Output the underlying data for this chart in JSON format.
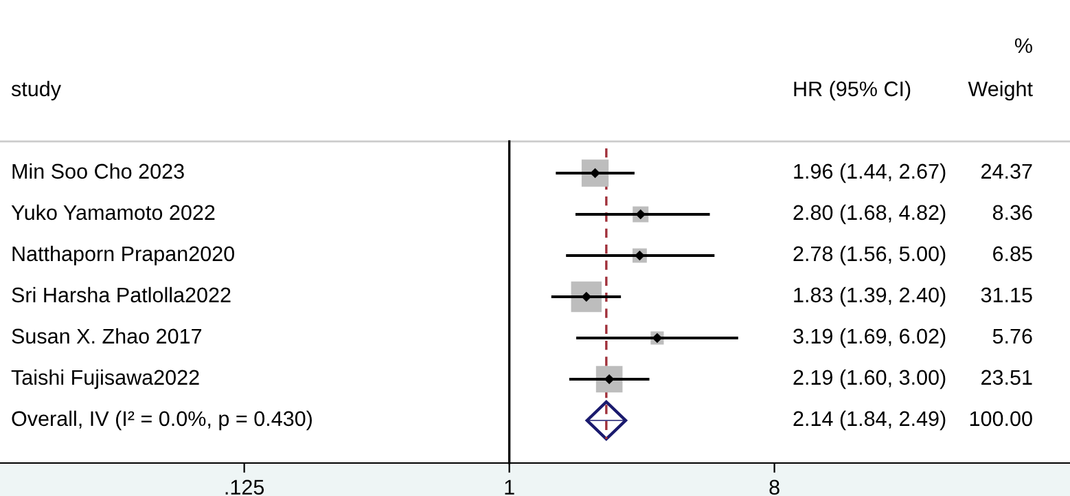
{
  "chart_data": {
    "type": "scatter",
    "orientation": "horizontal",
    "log": "x",
    "grid": false,
    "legend": false,
    "ylabel": "study",
    "categories": [
      "Min Soo Cho 2023",
      "Yuko Yamamoto 2022",
      "Natthaporn Prapan2020",
      "Sri Harsha Patlolla2022",
      "Susan X. Zhao 2017",
      "Taishi Fujisawa2022",
      "Overall, IV (I² = 0.0%, p = 0.430)"
    ],
    "series": [
      {
        "type": "bubble",
        "marker": "square",
        "color": "#bdbdbd",
        "values": [
          1.96,
          2.8,
          2.78,
          1.83,
          3.19,
          2.19,
          null
        ],
        "sizes": [
          0.7823,
          0.2684,
          0.2199,
          1,
          0.1849,
          0.7548,
          null
        ]
      },
      {
        "type": "scatter",
        "marker": "diamond",
        "color": "#000000",
        "values": [
          1.96,
          2.8,
          2.78,
          1.83,
          3.19,
          2.19,
          null
        ],
        "errors": [
          [
            1.44,
            2.67
          ],
          [
            1.68,
            4.82
          ],
          [
            1.56,
            5.0
          ],
          [
            1.39,
            2.4
          ],
          [
            1.69,
            6.02
          ],
          [
            1.6,
            3.0
          ],
          null
        ]
      },
      {
        "type": "scatter",
        "marker": "diamond",
        "color": "#1a1a6e",
        "values": [
          null,
          null,
          null,
          null,
          null,
          null,
          2.14
        ],
        "errors": [
          null,
          null,
          null,
          null,
          null,
          null,
          [
            1.84,
            2.49
          ]
        ]
      }
    ],
    "value_labels": [
      "1.96 (1.44, 2.67)",
      "2.80 (1.68, 4.82)",
      "2.78 (1.56, 5.00)",
      "1.83 (1.39, 2.40)",
      "3.19 (1.69, 6.02)",
      "2.19 (1.60, 3.00)",
      "2.14 (1.84, 2.49)"
    ],
    "annotations": [
      "HR (95% CI)",
      "Weight",
      "%",
      "24.37",
      "8.36",
      "6.85",
      "31.15",
      "5.76",
      "23.51",
      "100.00"
    ],
    "ref_lines": [
      {
        "axis": "x",
        "value": 1,
        "color": "#000000",
        "line_style": "solid"
      },
      {
        "axis": "x",
        "value": 2.14,
        "color": "#a0303a",
        "line_style": "dashed"
      }
    ],
    "xlim": [
      0.0184,
      81.3
    ],
    "xticks": [
      {
        "value": 0.125,
        "label": ".125"
      },
      1,
      8
    ]
  }
}
